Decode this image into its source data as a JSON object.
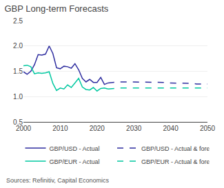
{
  "chart_data": {
    "type": "line",
    "title": "GBP Long-term Forecasts",
    "annotations": [
      "Sources: Refinitiv, Capital Economics"
    ],
    "xlim": [
      2000,
      2050
    ],
    "ylim": [
      0.5,
      2.5
    ],
    "xticks": [
      2000,
      2010,
      2020,
      2030,
      2040,
      2050
    ],
    "yticks": [
      0.5,
      {
        "value": 1.0,
        "label": "1.0"
      },
      1.5,
      {
        "value": 2.0,
        "label": "2.0"
      },
      2.5
    ],
    "grid": true,
    "legend": "bottom",
    "series": [
      {
        "name": "GBP/USD - Actual",
        "color": "#2e2d9f",
        "line_style": "solid",
        "x": [
          2000,
          2001,
          2002,
          2003,
          2004,
          2005,
          2006,
          2007,
          2008,
          2009,
          2010,
          2011,
          2012,
          2013,
          2014,
          2015,
          2016,
          2017,
          2018,
          2019,
          2020,
          2021,
          2022,
          2023
        ],
        "values": [
          1.49,
          1.44,
          1.5,
          1.63,
          1.83,
          1.82,
          1.84,
          2.0,
          1.85,
          1.57,
          1.55,
          1.6,
          1.59,
          1.56,
          1.65,
          1.53,
          1.36,
          1.29,
          1.34,
          1.28,
          1.28,
          1.38,
          1.24,
          1.27
        ]
      },
      {
        "name": "GBP/USD - Actual & forecast",
        "color": "#2e2d9f",
        "line_style": "dashed",
        "x": [
          2023,
          2024,
          2025,
          2026,
          2027,
          2028,
          2029,
          2030,
          2031,
          2032,
          2033,
          2034,
          2035,
          2036,
          2037,
          2038,
          2039,
          2040,
          2041,
          2042,
          2043,
          2044,
          2045,
          2046,
          2047,
          2048,
          2049,
          2050
        ],
        "values": [
          1.27,
          1.28,
          1.29,
          1.29,
          1.29,
          1.29,
          1.29,
          1.29,
          1.29,
          1.29,
          1.29,
          1.29,
          1.28,
          1.28,
          1.28,
          1.28,
          1.27,
          1.27,
          1.27,
          1.27,
          1.26,
          1.26,
          1.26,
          1.26,
          1.25,
          1.25,
          1.25,
          1.25
        ]
      },
      {
        "name": "GBP/EUR - Actual",
        "color": "#00c8a0",
        "line_style": "solid",
        "x": [
          2000,
          2001,
          2002,
          2003,
          2004,
          2005,
          2006,
          2007,
          2008,
          2009,
          2010,
          2011,
          2012,
          2013,
          2014,
          2015,
          2016,
          2017,
          2018,
          2019,
          2020,
          2021,
          2022,
          2023
        ],
        "values": [
          1.61,
          1.62,
          1.59,
          1.45,
          1.47,
          1.46,
          1.47,
          1.49,
          1.26,
          1.12,
          1.17,
          1.15,
          1.23,
          1.18,
          1.27,
          1.36,
          1.19,
          1.14,
          1.13,
          1.18,
          1.11,
          1.16,
          1.17,
          1.15
        ]
      },
      {
        "name": "GBP/EUR - Actual & forecast",
        "color": "#00c8a0",
        "line_style": "dashed",
        "x": [
          2023,
          2024,
          2025,
          2026,
          2027,
          2028,
          2029,
          2030,
          2031,
          2032,
          2033,
          2034,
          2035,
          2036,
          2037,
          2038,
          2039,
          2040,
          2041,
          2042,
          2043,
          2044,
          2045,
          2046,
          2047,
          2048,
          2049,
          2050
        ],
        "values": [
          1.15,
          1.16,
          1.17,
          1.17,
          1.17,
          1.17,
          1.17,
          1.17,
          1.17,
          1.17,
          1.17,
          1.17,
          1.17,
          1.17,
          1.17,
          1.17,
          1.17,
          1.17,
          1.17,
          1.17,
          1.17,
          1.17,
          1.17,
          1.17,
          1.17,
          1.17,
          1.17,
          1.17
        ]
      }
    ]
  }
}
